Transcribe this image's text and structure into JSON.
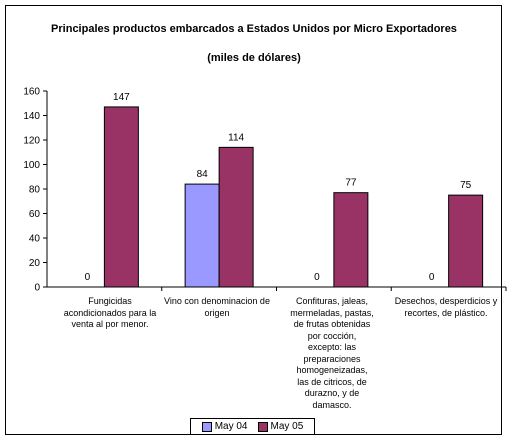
{
  "chart_data": {
    "type": "bar",
    "title": "Principales productos embarcados a Estados Unidos por Micro Exportadores",
    "subtitle": "(miles de dólares)",
    "categories": [
      "Fungicidas acondicionados para la venta al por menor.",
      "Vino con denominacion de origen",
      "Confituras, jaleas, mermeladas, pastas, de frutas obtenidas por cocción, excepto: las preparaciones homogeneizadas, las de citricos, de durazno, y de damasco.",
      "Desechos, desperdicios y recortes, de plástico."
    ],
    "series": [
      {
        "name": "May 04",
        "values": [
          0,
          84,
          0,
          0
        ],
        "color": "#9999ff"
      },
      {
        "name": "May 05",
        "values": [
          147,
          114,
          77,
          75
        ],
        "color": "#993366"
      }
    ],
    "ylim": [
      0,
      160
    ],
    "yticks": [
      0,
      20,
      40,
      60,
      80,
      100,
      120,
      140,
      160
    ],
    "legend_position": "bottom",
    "grid": false
  }
}
